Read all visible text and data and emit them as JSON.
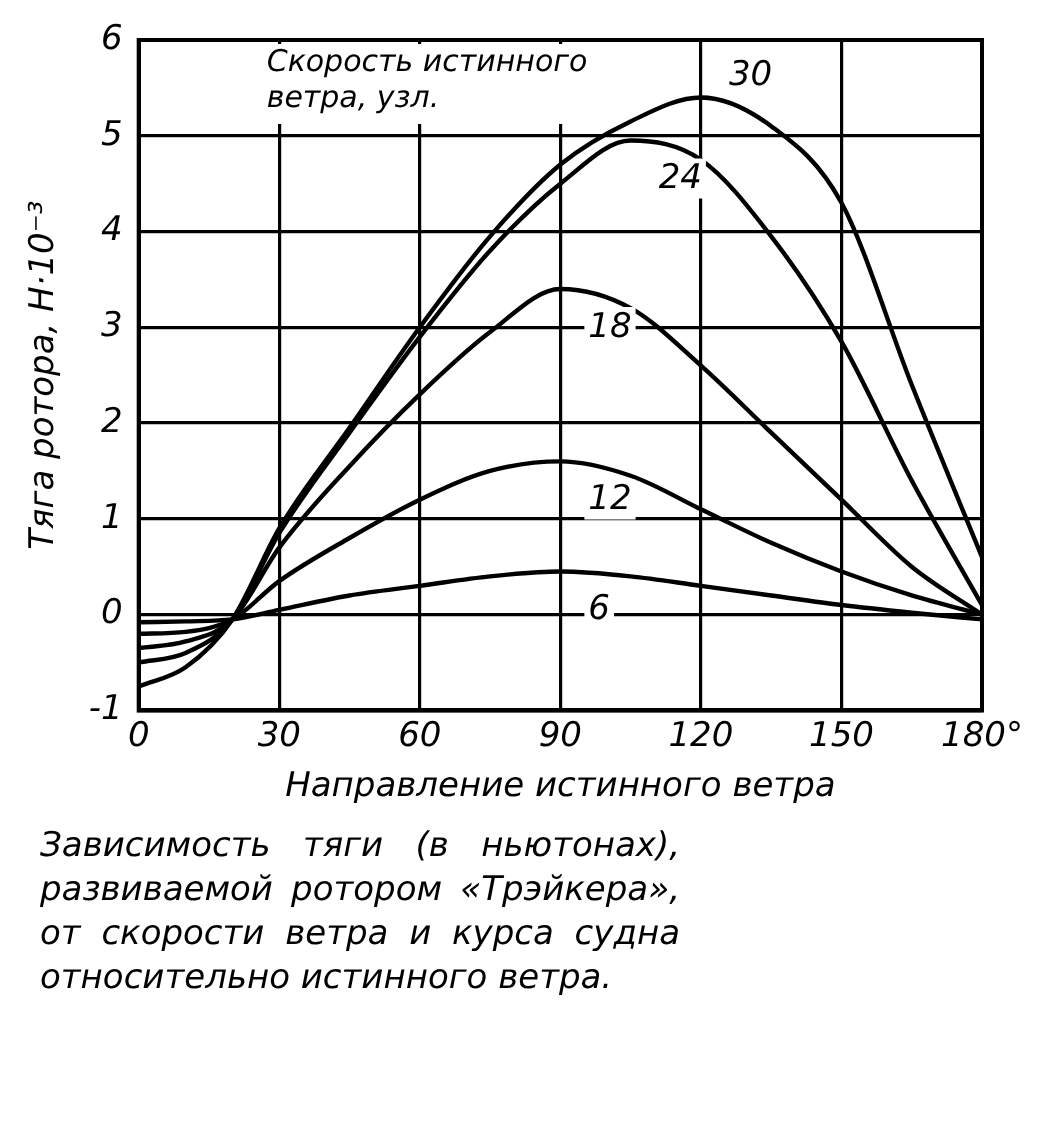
{
  "chart_data": {
    "type": "line",
    "xlabel": "Направление истинного ветра",
    "ylabel": "Тяга ротора, Н·10⁻³",
    "legend_title": "Скорость истинного ветра, узл.",
    "x": [
      0,
      10,
      20,
      30,
      45,
      60,
      75,
      90,
      105,
      120,
      135,
      150,
      165,
      180
    ],
    "series": [
      {
        "name": "30",
        "color": "#000000",
        "values": [
          -0.75,
          -0.55,
          -0.05,
          0.9,
          1.95,
          3.0,
          3.95,
          4.7,
          5.15,
          5.4,
          5.1,
          4.3,
          2.4,
          0.6
        ]
      },
      {
        "name": "24",
        "color": "#000000",
        "values": [
          -0.5,
          -0.4,
          -0.05,
          0.85,
          1.9,
          2.9,
          3.8,
          4.5,
          4.95,
          4.75,
          3.95,
          2.85,
          1.4,
          0.1
        ]
      },
      {
        "name": "18",
        "color": "#000000",
        "values": [
          -0.35,
          -0.28,
          -0.05,
          0.7,
          1.55,
          2.3,
          2.95,
          3.4,
          3.2,
          2.6,
          1.9,
          1.2,
          0.5,
          0.0
        ]
      },
      {
        "name": "12",
        "color": "#000000",
        "values": [
          -0.2,
          -0.18,
          -0.05,
          0.35,
          0.8,
          1.2,
          1.5,
          1.6,
          1.45,
          1.1,
          0.75,
          0.45,
          0.2,
          0.0
        ]
      },
      {
        "name": "6",
        "color": "#000000",
        "values": [
          -0.08,
          -0.07,
          -0.05,
          0.05,
          0.2,
          0.3,
          0.4,
          0.45,
          0.4,
          0.3,
          0.2,
          0.1,
          0.02,
          -0.05
        ]
      }
    ],
    "xlim": [
      0,
      180
    ],
    "xticks": [
      0,
      30,
      60,
      90,
      120,
      150,
      {
        "value": 180,
        "label": "180°"
      }
    ],
    "ylim": [
      -1,
      6
    ],
    "yticks": [
      -1,
      0,
      1,
      2,
      3,
      4,
      5,
      6
    ],
    "grid": true,
    "legend": false,
    "marker": "none",
    "line_style": "solid",
    "annotations": [
      "Зависимость тяги (в ньютонах), развиваемой ротором «Трэйкера», от скорости ветра и курса судна относительно истинного ветра."
    ]
  }
}
